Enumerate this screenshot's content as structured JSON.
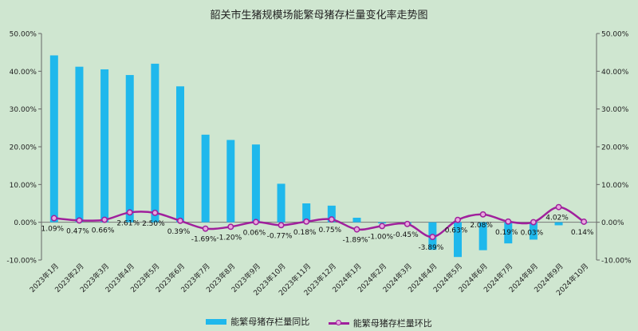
{
  "chart_data": {
    "type": "bar",
    "title": "韶关市生猪规模场能繁母猪存栏量变化率走势图",
    "categories": [
      "2023年1月",
      "2023年2月",
      "2023年3月",
      "2023年4月",
      "2023年5月",
      "2023年6月",
      "2023年7月",
      "2023年8月",
      "2023年9月",
      "2023年10月",
      "2023年11月",
      "2023年12月",
      "2024年1月",
      "2024年2月",
      "2024年3月",
      "2024年4月",
      "2024年5月",
      "2024年6月",
      "2024年7月",
      "2024年8月",
      "2024年9月",
      "2024年10月"
    ],
    "series": [
      {
        "name": "能繁母猪存栏量同比",
        "type": "bar",
        "color": "#1fb8ec",
        "values": [
          44.2,
          41.2,
          40.5,
          39.0,
          42.0,
          36.0,
          23.2,
          21.8,
          20.6,
          10.2,
          5.0,
          4.4,
          1.2,
          -0.3,
          -0.5,
          -7.3,
          -9.2,
          -7.4,
          -5.6,
          -4.6,
          -0.8,
          -0.2
        ]
      },
      {
        "name": "能繁母猪存栏量环比",
        "type": "line",
        "color": "#a0209c",
        "values": [
          1.09,
          0.47,
          0.66,
          2.61,
          2.5,
          0.39,
          -1.69,
          -1.2,
          0.06,
          -0.77,
          0.18,
          0.75,
          -1.89,
          -1.0,
          -0.45,
          -3.89,
          0.63,
          2.08,
          0.19,
          0.03,
          4.02,
          0.14
        ],
        "labels": [
          "1.09%",
          "0.47%",
          "0.66%",
          "2.61%",
          "2.50%",
          "0.39%",
          "-1.69%",
          "-1.20%",
          "0.06%",
          "-0.77%",
          "0.18%",
          "0.75%",
          "-1.89%",
          "-1.00%",
          "-0.45%",
          "-3.89%",
          "0.63%",
          "2.08%",
          "0.19%",
          "0.03%",
          "4.02%",
          "0.14%"
        ]
      }
    ],
    "ylim": [
      -10,
      50
    ],
    "yticks": [
      "-10.00%",
      "0.00%",
      "10.00%",
      "20.00%",
      "30.00%",
      "40.00%",
      "50.00%"
    ],
    "y2ticks": [
      "-10.00%",
      "0.00%",
      "10.00%",
      "20.00%",
      "30.00%",
      "40.00%",
      "50.00%"
    ],
    "grid": false,
    "legend_position": "bottom"
  }
}
